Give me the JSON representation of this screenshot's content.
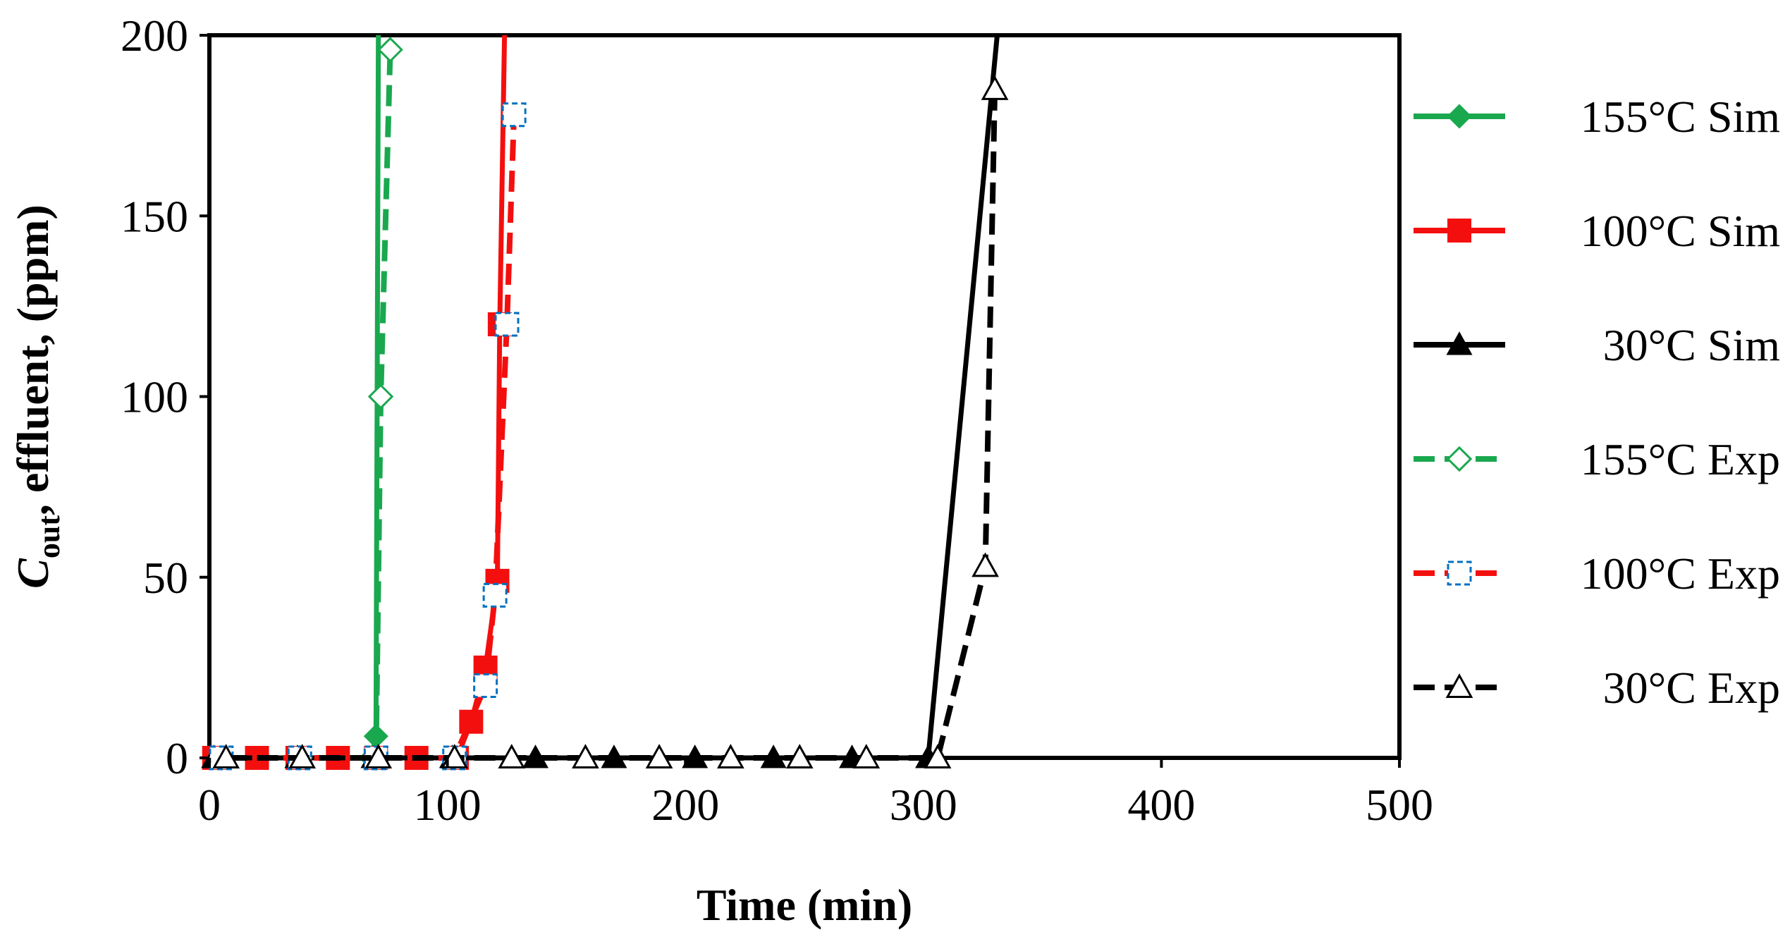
{
  "chart_data": {
    "type": "line",
    "xlabel": "Time (min)",
    "ylabel_parts": {
      "main": "C",
      "sub": "out",
      "rest": ", effluent, (ppm)"
    },
    "xlim": [
      0,
      500
    ],
    "ylim": [
      0,
      200
    ],
    "xticks": [
      0,
      100,
      200,
      300,
      400,
      500
    ],
    "yticks": [
      0,
      50,
      100,
      150,
      200
    ],
    "grid": false,
    "legend_position": "right",
    "series": [
      {
        "name": "155°C Sim",
        "color": "#1aa84f",
        "dash": "solid",
        "marker": "diamond",
        "marker_fill": "filled",
        "x": [
          2,
          37,
          68,
          70,
          71
        ],
        "y": [
          0,
          0,
          0,
          6,
          200
        ]
      },
      {
        "name": "100°C Sim",
        "color": "#f40f0f",
        "dash": "solid",
        "marker": "square",
        "marker_fill": "filled",
        "x": [
          2,
          20,
          37,
          54,
          70,
          87,
          104,
          110,
          116,
          121,
          122,
          124
        ],
        "y": [
          0,
          0,
          0,
          0,
          0,
          0,
          0,
          10,
          25,
          49,
          120,
          200
        ]
      },
      {
        "name": "30°C Sim",
        "color": "#000000",
        "dash": "solid",
        "marker": "triangle",
        "marker_fill": "filled",
        "x": [
          2,
          37,
          69,
          102,
          137,
          170,
          204,
          237,
          270,
          302,
          331
        ],
        "y": [
          0,
          0,
          0,
          0,
          0,
          0,
          0,
          0,
          0,
          0,
          200
        ]
      },
      {
        "name": "155°C Exp",
        "color": "#1aa84f",
        "dash": "dashed",
        "marker": "diamond",
        "marker_fill": "open",
        "x": [
          5,
          38,
          70,
          72,
          76
        ],
        "y": [
          0,
          0,
          0,
          100,
          196
        ]
      },
      {
        "name": "100°C Exp",
        "color": "#f40f0f",
        "dash": "dashed",
        "marker": "square",
        "marker_fill": "open",
        "marker_color": "#0070c0",
        "x": [
          5,
          38,
          70,
          103,
          116,
          120,
          125,
          128
        ],
        "y": [
          0,
          0,
          0,
          0,
          20,
          45,
          120,
          178
        ]
      },
      {
        "name": "30°C Exp",
        "color": "#000000",
        "dash": "dashed",
        "marker": "triangle",
        "marker_fill": "open",
        "x": [
          7,
          39,
          71,
          103,
          127,
          158,
          189,
          219,
          248,
          276,
          306,
          326,
          330
        ],
        "y": [
          0,
          0,
          0,
          0,
          0,
          0,
          0,
          0,
          0,
          0,
          0,
          53,
          185
        ]
      }
    ]
  }
}
